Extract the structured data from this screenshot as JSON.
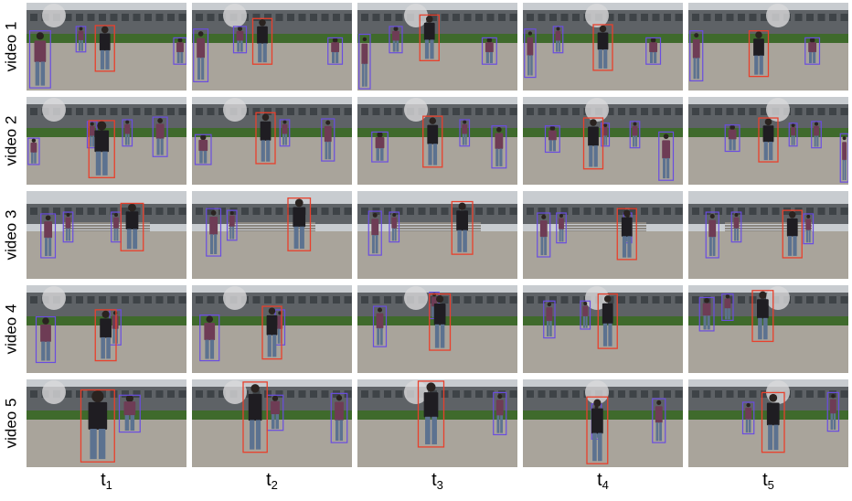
{
  "rows": [
    {
      "label": "video 1"
    },
    {
      "label": "video 2"
    },
    {
      "label": "video 3"
    },
    {
      "label": "video 4"
    },
    {
      "label": "video 5"
    }
  ],
  "columns": [
    {
      "base": "t",
      "sub": "1"
    },
    {
      "base": "t",
      "sub": "2"
    },
    {
      "base": "t",
      "sub": "3"
    },
    {
      "base": "t",
      "sub": "4"
    },
    {
      "base": "t",
      "sub": "5"
    }
  ],
  "colors": {
    "target_box": "#e8402c",
    "other_box": "#6a4de0",
    "sky": "#c8ccd0",
    "building": "#5e6266",
    "grass": "#3f6a2c",
    "pavement": "#a9a49b"
  },
  "frames": [
    [
      {
        "target": [
          0.43,
          0.26,
          0.12,
          0.52
        ],
        "others": [
          [
            0.02,
            0.32,
            0.13,
            0.65
          ],
          [
            0.92,
            0.4,
            0.08,
            0.3
          ],
          [
            0.31,
            0.27,
            0.06,
            0.29
          ]
        ]
      },
      {
        "target": [
          0.38,
          0.18,
          0.12,
          0.52
        ],
        "others": [
          [
            0.26,
            0.27,
            0.08,
            0.3
          ],
          [
            0.85,
            0.4,
            0.09,
            0.3
          ],
          [
            0.01,
            0.3,
            0.09,
            0.6
          ]
        ]
      },
      {
        "target": [
          0.39,
          0.14,
          0.12,
          0.52
        ],
        "others": [
          [
            0.2,
            0.27,
            0.08,
            0.3
          ],
          [
            0.78,
            0.4,
            0.09,
            0.3
          ],
          [
            0.01,
            0.36,
            0.07,
            0.62
          ]
        ]
      },
      {
        "target": [
          0.44,
          0.25,
          0.12,
          0.52
        ],
        "others": [
          [
            0.19,
            0.27,
            0.06,
            0.3
          ],
          [
            0.77,
            0.4,
            0.09,
            0.3
          ],
          [
            0.01,
            0.3,
            0.07,
            0.55
          ]
        ]
      },
      {
        "target": [
          0.38,
          0.32,
          0.12,
          0.52
        ],
        "others": [
          [
            0.73,
            0.4,
            0.09,
            0.3
          ],
          [
            0.01,
            0.32,
            0.08,
            0.57
          ]
        ]
      }
    ],
    [
      {
        "target": [
          0.39,
          0.27,
          0.16,
          0.65
        ],
        "others": [
          [
            0.38,
            0.28,
            0.06,
            0.3
          ],
          [
            0.6,
            0.26,
            0.06,
            0.3
          ],
          [
            0.79,
            0.23,
            0.09,
            0.45
          ],
          [
            0.01,
            0.47,
            0.07,
            0.3
          ]
        ]
      },
      {
        "target": [
          0.4,
          0.18,
          0.12,
          0.58
        ],
        "others": [
          [
            0.55,
            0.26,
            0.06,
            0.3
          ],
          [
            0.81,
            0.25,
            0.08,
            0.48
          ],
          [
            0.02,
            0.43,
            0.1,
            0.34
          ]
        ]
      },
      {
        "target": [
          0.41,
          0.22,
          0.12,
          0.58
        ],
        "others": [
          [
            0.64,
            0.26,
            0.06,
            0.3
          ],
          [
            0.84,
            0.33,
            0.09,
            0.48
          ],
          [
            0.09,
            0.4,
            0.1,
            0.34
          ]
        ]
      },
      {
        "target": [
          0.38,
          0.24,
          0.12,
          0.58
        ],
        "others": [
          [
            0.49,
            0.3,
            0.05,
            0.26
          ],
          [
            0.67,
            0.28,
            0.06,
            0.3
          ],
          [
            0.85,
            0.4,
            0.09,
            0.55
          ],
          [
            0.14,
            0.33,
            0.09,
            0.3
          ]
        ]
      },
      {
        "target": [
          0.44,
          0.24,
          0.12,
          0.5
        ],
        "others": [
          [
            0.63,
            0.3,
            0.05,
            0.26
          ],
          [
            0.77,
            0.28,
            0.06,
            0.3
          ],
          [
            0.95,
            0.42,
            0.05,
            0.55
          ],
          [
            0.23,
            0.32,
            0.09,
            0.3
          ]
        ]
      }
    ],
    [
      {
        "target": [
          0.59,
          0.14,
          0.14,
          0.54
        ],
        "others": [
          [
            0.09,
            0.26,
            0.09,
            0.5
          ],
          [
            0.23,
            0.24,
            0.06,
            0.34
          ],
          [
            0.53,
            0.24,
            0.06,
            0.34
          ]
        ]
      },
      {
        "target": [
          0.6,
          0.08,
          0.14,
          0.6
        ],
        "others": [
          [
            0.09,
            0.2,
            0.09,
            0.54
          ],
          [
            0.22,
            0.22,
            0.06,
            0.34
          ]
        ]
      },
      {
        "target": [
          0.59,
          0.12,
          0.13,
          0.6
        ],
        "others": [
          [
            0.07,
            0.23,
            0.08,
            0.5
          ],
          [
            0.2,
            0.24,
            0.06,
            0.34
          ]
        ]
      },
      {
        "target": [
          0.59,
          0.2,
          0.12,
          0.58
        ],
        "others": [
          [
            0.09,
            0.25,
            0.08,
            0.5
          ],
          [
            0.21,
            0.25,
            0.06,
            0.34
          ],
          [
            0.63,
            0.25,
            0.05,
            0.34
          ]
        ]
      },
      {
        "target": [
          0.59,
          0.22,
          0.12,
          0.54
        ],
        "others": [
          [
            0.11,
            0.24,
            0.08,
            0.52
          ],
          [
            0.27,
            0.24,
            0.06,
            0.34
          ],
          [
            0.72,
            0.26,
            0.06,
            0.34
          ]
        ]
      }
    ],
    [
      {
        "target": [
          0.43,
          0.28,
          0.13,
          0.58
        ],
        "others": [
          [
            0.06,
            0.36,
            0.12,
            0.52
          ],
          [
            0.52,
            0.28,
            0.07,
            0.4
          ]
        ]
      },
      {
        "target": [
          0.44,
          0.24,
          0.12,
          0.6
        ],
        "others": [
          [
            0.05,
            0.34,
            0.12,
            0.52
          ],
          [
            0.52,
            0.28,
            0.06,
            0.4
          ]
        ]
      },
      {
        "target": [
          0.45,
          0.1,
          0.13,
          0.64
        ],
        "others": [
          [
            0.1,
            0.24,
            0.08,
            0.46
          ],
          [
            0.45,
            0.08,
            0.06,
            0.3
          ]
        ]
      },
      {
        "target": [
          0.47,
          0.1,
          0.12,
          0.62
        ],
        "others": [
          [
            0.13,
            0.18,
            0.07,
            0.42
          ],
          [
            0.36,
            0.18,
            0.06,
            0.32
          ]
        ]
      },
      {
        "target": [
          0.4,
          0.06,
          0.13,
          0.58
        ],
        "others": [
          [
            0.07,
            0.14,
            0.09,
            0.38
          ],
          [
            0.21,
            0.1,
            0.07,
            0.3
          ]
        ]
      }
    ],
    [
      {
        "target": [
          0.34,
          0.12,
          0.21,
          0.82
        ],
        "others": [
          [
            0.58,
            0.18,
            0.13,
            0.42
          ]
        ]
      },
      {
        "target": [
          0.32,
          0.03,
          0.15,
          0.8
        ],
        "others": [
          [
            0.47,
            0.18,
            0.1,
            0.4
          ],
          [
            0.87,
            0.16,
            0.1,
            0.56
          ]
        ]
      },
      {
        "target": [
          0.38,
          0.02,
          0.16,
          0.75
        ],
        "others": [
          [
            0.85,
            0.15,
            0.08,
            0.48
          ]
        ]
      },
      {
        "target": [
          0.4,
          0.2,
          0.13,
          0.76
        ],
        "others": [
          [
            0.81,
            0.22,
            0.08,
            0.5
          ],
          [
            0.43,
            0.28,
            0.06,
            0.4
          ]
        ]
      },
      {
        "target": [
          0.46,
          0.15,
          0.14,
          0.68
        ],
        "others": [
          [
            0.87,
            0.15,
            0.07,
            0.44
          ],
          [
            0.34,
            0.26,
            0.07,
            0.36
          ]
        ]
      }
    ]
  ]
}
